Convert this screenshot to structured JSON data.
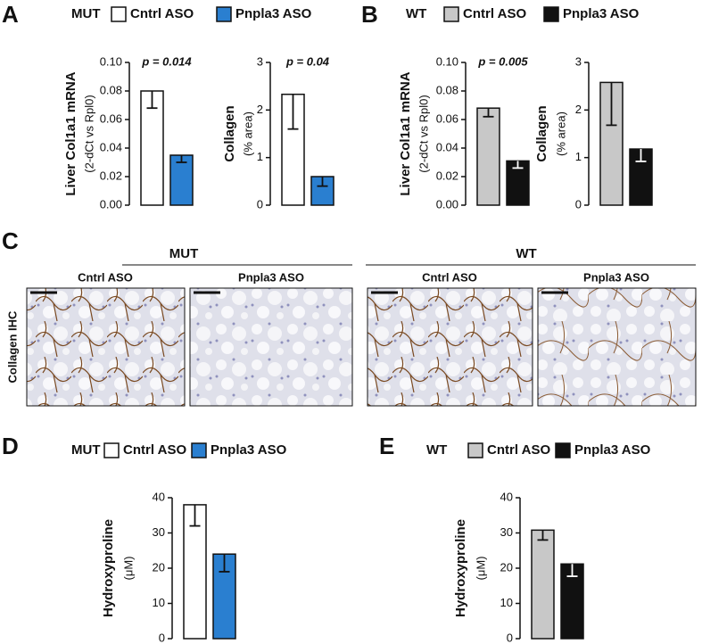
{
  "figure": {
    "panels": [
      {
        "letter": "A",
        "group": "MUT",
        "legend": [
          {
            "name": "Cntrl ASO",
            "color": "#ffffff"
          },
          {
            "name": "Pnpla3 ASO",
            "color": "#2a7fd0"
          }
        ]
      },
      {
        "letter": "B",
        "group": "WT",
        "legend": [
          {
            "name": "Cntrl ASO",
            "color": "#c8c8c8"
          },
          {
            "name": "Pnpla3 ASO",
            "color": "#111111"
          }
        ]
      },
      {
        "letter": "D",
        "group": "MUT",
        "legend": [
          {
            "name": "Cntrl ASO",
            "color": "#ffffff"
          },
          {
            "name": "Pnpla3 ASO",
            "color": "#2a7fd0"
          }
        ]
      },
      {
        "letter": "E",
        "group": "WT",
        "legend": [
          {
            "name": "Cntrl ASO",
            "color": "#c8c8c8"
          },
          {
            "name": "Pnpla3 ASO",
            "color": "#111111"
          }
        ]
      }
    ],
    "panel_c": {
      "letter": "C",
      "row_label": "Collagen IHC",
      "groups": [
        {
          "label": "MUT",
          "columns": [
            "Cntrl ASO",
            "Pnpla3 ASO"
          ]
        },
        {
          "label": "WT",
          "columns": [
            "Cntrl ASO",
            "Pnpla3 ASO"
          ]
        }
      ]
    }
  },
  "chart_data": [
    {
      "type": "bar",
      "ylabel": "Liver Col1a1 mRNA",
      "ylabel2": "(2-dCt vs Rpl0)",
      "annotation": "p = 0.014",
      "categories": [
        null,
        null
      ],
      "values": [
        0.08,
        0.035
      ],
      "errors": [
        0.012,
        0.005
      ],
      "colors": [
        "#ffffff",
        "#2a7fd0"
      ],
      "ylim": [
        0,
        0.1
      ],
      "yticks": [
        {
          "value": 0,
          "label": "0.00"
        },
        {
          "value": 0.02,
          "label": "0.02"
        },
        {
          "value": 0.04,
          "label": "0.04"
        },
        {
          "value": 0.06,
          "label": "0.06"
        },
        {
          "value": 0.08,
          "label": "0.08"
        },
        {
          "value": 0.1,
          "label": "0.10"
        }
      ]
    },
    {
      "type": "bar",
      "ylabel": "Collagen",
      "ylabel2": "(% area)",
      "annotation": "p = 0.04",
      "categories": [
        null,
        null
      ],
      "values": [
        2.33,
        0.6
      ],
      "errors": [
        0.73,
        0.2
      ],
      "colors": [
        "#ffffff",
        "#2a7fd0"
      ],
      "ylim": [
        0,
        3
      ],
      "yticks": [
        0,
        1,
        2,
        3
      ]
    },
    {
      "type": "bar",
      "ylabel": "Liver Col1a1 mRNA",
      "ylabel2": "(2-dCt vs Rpl0)",
      "annotation": "p = 0.005",
      "categories": [
        null,
        null
      ],
      "values": [
        0.068,
        0.031
      ],
      "errors": [
        0.006,
        0.005
      ],
      "colors": [
        "#c8c8c8",
        "#111111"
      ],
      "ylim": [
        0,
        0.1
      ],
      "yticks": [
        {
          "value": 0,
          "label": "0.00"
        },
        {
          "value": 0.02,
          "label": "0.02"
        },
        {
          "value": 0.04,
          "label": "0.04"
        },
        {
          "value": 0.06,
          "label": "0.06"
        },
        {
          "value": 0.08,
          "label": "0.08"
        },
        {
          "value": 0.1,
          "label": "0.10"
        }
      ]
    },
    {
      "type": "bar",
      "ylabel": "Collagen",
      "ylabel2": "(% area)",
      "categories": [
        null,
        null
      ],
      "values": [
        2.58,
        1.18
      ],
      "errors": [
        0.9,
        0.26
      ],
      "colors": [
        "#c8c8c8",
        "#111111"
      ],
      "ylim": [
        0,
        3
      ],
      "yticks": [
        0,
        1,
        2,
        3
      ]
    },
    {
      "type": "bar",
      "ylabel": "Hydroxyproline",
      "ylabel2": "(μM)",
      "categories": [
        null,
        null
      ],
      "values": [
        38,
        24
      ],
      "errors": [
        6,
        5
      ],
      "colors": [
        "#ffffff",
        "#2a7fd0"
      ],
      "ylim": [
        0,
        40
      ],
      "yticks": [
        0,
        10,
        20,
        30,
        40
      ]
    },
    {
      "type": "bar",
      "ylabel": "Hydroxyproline",
      "ylabel2": "(μM)",
      "categories": [
        null,
        null
      ],
      "values": [
        30.8,
        21.2
      ],
      "errors": [
        2.8,
        3.5
      ],
      "colors": [
        "#c8c8c8",
        "#111111"
      ],
      "ylim": [
        0,
        40
      ],
      "yticks": [
        0,
        10,
        20,
        30,
        40
      ]
    }
  ]
}
